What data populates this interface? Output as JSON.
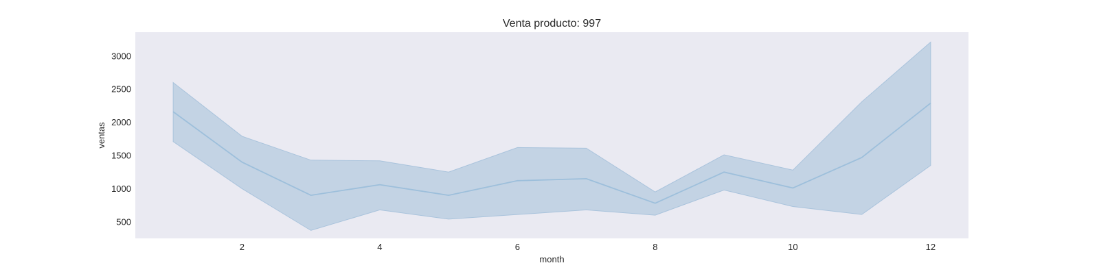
{
  "chart_data": {
    "type": "line",
    "title": "Venta producto: 997",
    "xlabel": "month",
    "ylabel": "ventas",
    "x": [
      1,
      2,
      3,
      4,
      5,
      6,
      7,
      8,
      9,
      10,
      11,
      12
    ],
    "series": [
      {
        "values": [
          2160,
          1400,
          900,
          1060,
          900,
          1120,
          1150,
          780,
          1250,
          1010,
          1470,
          2290
        ],
        "ci_lower": [
          1710,
          1000,
          370,
          680,
          540,
          610,
          680,
          600,
          980,
          730,
          610,
          1350
        ],
        "ci_upper": [
          2600,
          1790,
          1430,
          1420,
          1250,
          1620,
          1610,
          950,
          1510,
          1280,
          2310,
          3210
        ]
      }
    ],
    "xticks": [
      "2",
      "4",
      "6",
      "8",
      "10",
      "12"
    ],
    "yticks": [
      "500",
      "1000",
      "1500",
      "2000",
      "2500",
      "3000"
    ],
    "xlim": [
      0.45,
      12.55
    ],
    "ylim": [
      250,
      3360
    ],
    "grid": false,
    "colors": {
      "background": "#eaeaf2",
      "line": "#9dbfdb",
      "band": "#c3d3e4",
      "band_edge": "#a9c3dc"
    }
  }
}
